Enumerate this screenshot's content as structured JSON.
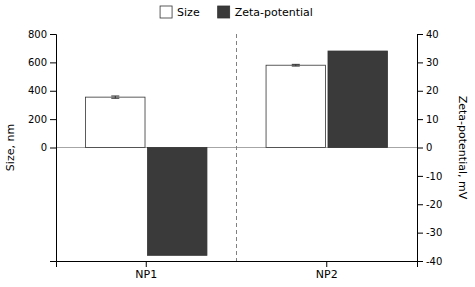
{
  "chart_data": {
    "type": "bar",
    "categories": [
      "NP1",
      "NP2"
    ],
    "series": [
      {
        "name": "Size",
        "color": "#ffffff",
        "values": [
          355,
          580
        ],
        "errors": [
          8,
          6
        ]
      },
      {
        "name": "Zeta-potential",
        "color": "#3a3a3a",
        "values": [
          -38,
          34
        ],
        "axis": "y2"
      }
    ],
    "ylabel": "Size, nm",
    "y2label": "Zeta-potential, mV",
    "ylim": [
      -800,
      800
    ],
    "yticks": [
      0,
      200,
      400,
      600,
      800
    ],
    "y2lim": [
      -40,
      40
    ],
    "y2ticks": [
      -40,
      -30,
      -20,
      -10,
      0,
      10,
      20,
      30,
      40
    ],
    "legend": "top",
    "grid": false
  }
}
